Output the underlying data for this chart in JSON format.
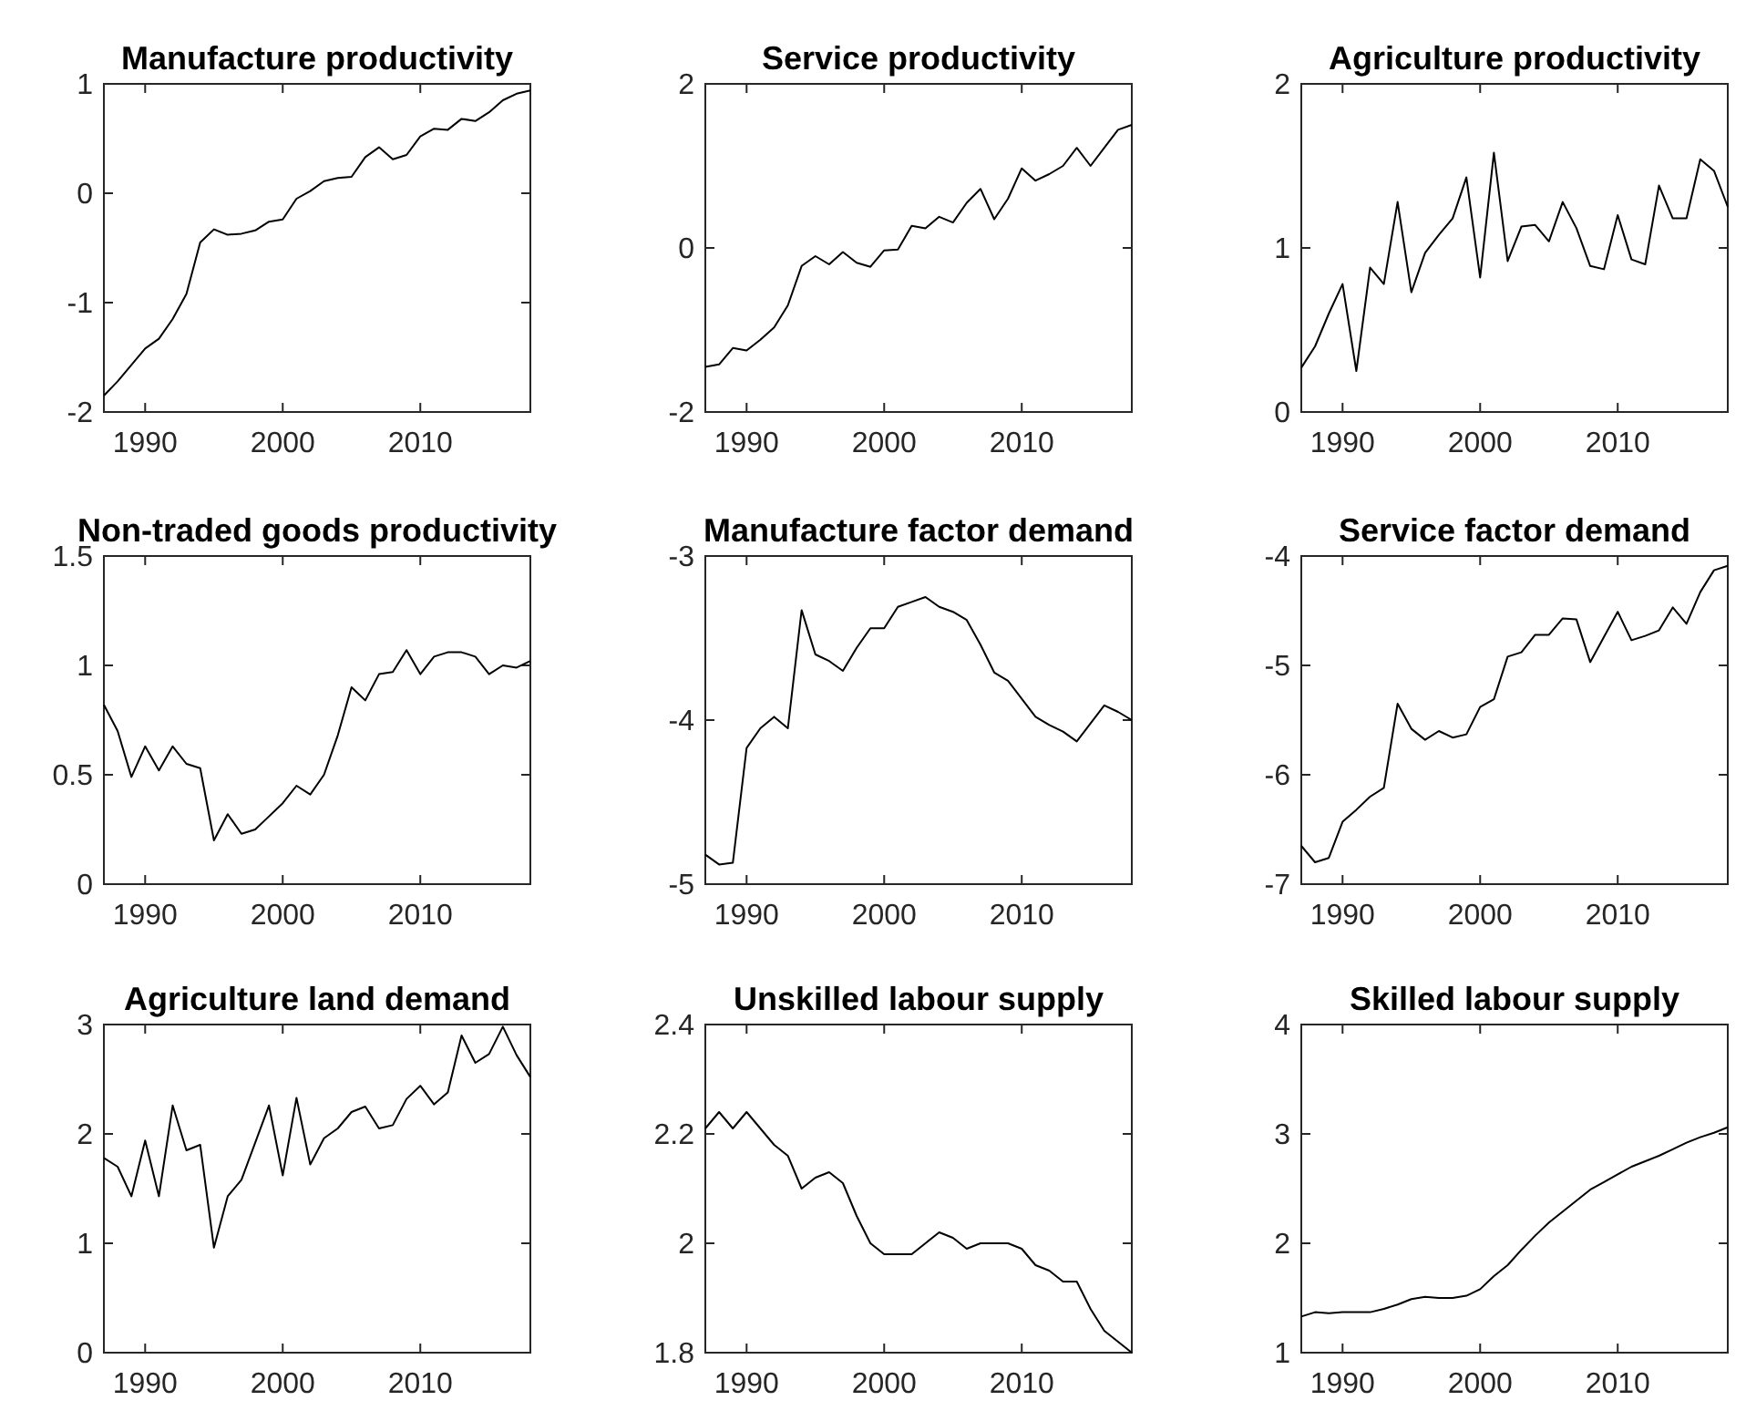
{
  "chart_data": [
    {
      "type": "line",
      "title": "Manufacture productivity",
      "x": [
        1987,
        1988,
        1989,
        1990,
        1991,
        1992,
        1993,
        1994,
        1995,
        1996,
        1997,
        1998,
        1999,
        2000,
        2001,
        2002,
        2003,
        2004,
        2005,
        2006,
        2007,
        2008,
        2009,
        2010,
        2011,
        2012,
        2013,
        2014,
        2015,
        2016,
        2017,
        2018
      ],
      "values": [
        -1.85,
        -1.72,
        -1.57,
        -1.42,
        -1.33,
        -1.15,
        -0.92,
        -0.45,
        -0.33,
        -0.38,
        -0.37,
        -0.34,
        -0.26,
        -0.24,
        -0.05,
        0.02,
        0.11,
        0.14,
        0.15,
        0.33,
        0.42,
        0.31,
        0.35,
        0.52,
        0.59,
        0.58,
        0.68,
        0.66,
        0.74,
        0.85,
        0.91,
        0.94
      ],
      "color": "#000000",
      "xlim": [
        1987,
        2018
      ],
      "ylim": [
        -2,
        1
      ],
      "xticks": [
        1990,
        2000,
        2010
      ],
      "yticks": [
        -2,
        -1,
        0,
        1
      ]
    },
    {
      "type": "line",
      "title": "Service productivity",
      "x": [
        1987,
        1988,
        1989,
        1990,
        1991,
        1992,
        1993,
        1994,
        1995,
        1996,
        1997,
        1998,
        1999,
        2000,
        2001,
        2002,
        2003,
        2004,
        2005,
        2006,
        2007,
        2008,
        2009,
        2010,
        2011,
        2012,
        2013,
        2014,
        2015,
        2016,
        2017,
        2018
      ],
      "values": [
        -1.45,
        -1.42,
        -1.22,
        -1.25,
        -1.12,
        -0.97,
        -0.7,
        -0.22,
        -0.1,
        -0.2,
        -0.05,
        -0.18,
        -0.23,
        -0.03,
        -0.02,
        0.27,
        0.24,
        0.38,
        0.31,
        0.55,
        0.72,
        0.35,
        0.6,
        0.97,
        0.82,
        0.9,
        1.0,
        1.22,
        1.0,
        1.22,
        1.44,
        1.5
      ],
      "color": "#000000",
      "xlim": [
        1987,
        2018
      ],
      "ylim": [
        -2,
        2
      ],
      "xticks": [
        1990,
        2000,
        2010
      ],
      "yticks": [
        -2,
        0,
        2
      ]
    },
    {
      "type": "line",
      "title": "Agriculture productivity",
      "x": [
        1987,
        1988,
        1989,
        1990,
        1991,
        1992,
        1993,
        1994,
        1995,
        1996,
        1997,
        1998,
        1999,
        2000,
        2001,
        2002,
        2003,
        2004,
        2005,
        2006,
        2007,
        2008,
        2009,
        2010,
        2011,
        2012,
        2013,
        2014,
        2015,
        2016,
        2017,
        2018
      ],
      "values": [
        0.27,
        0.4,
        0.6,
        0.78,
        0.25,
        0.88,
        0.78,
        1.28,
        0.73,
        0.97,
        1.08,
        1.18,
        1.43,
        0.82,
        1.58,
        0.92,
        1.13,
        1.14,
        1.04,
        1.28,
        1.12,
        0.89,
        0.87,
        1.2,
        0.93,
        0.9,
        1.38,
        1.18,
        1.18,
        1.54,
        1.47,
        1.25
      ],
      "color": "#000000",
      "xlim": [
        1987,
        2018
      ],
      "ylim": [
        0,
        2
      ],
      "xticks": [
        1990,
        2000,
        2010
      ],
      "yticks": [
        0,
        1,
        2
      ]
    },
    {
      "type": "line",
      "title": "Non-traded goods productivity",
      "x": [
        1987,
        1988,
        1989,
        1990,
        1991,
        1992,
        1993,
        1994,
        1995,
        1996,
        1997,
        1998,
        1999,
        2000,
        2001,
        2002,
        2003,
        2004,
        2005,
        2006,
        2007,
        2008,
        2009,
        2010,
        2011,
        2012,
        2013,
        2014,
        2015,
        2016,
        2017,
        2018
      ],
      "values": [
        0.82,
        0.7,
        0.49,
        0.63,
        0.52,
        0.63,
        0.55,
        0.53,
        0.2,
        0.32,
        0.23,
        0.25,
        0.31,
        0.37,
        0.45,
        0.41,
        0.5,
        0.68,
        0.9,
        0.84,
        0.96,
        0.97,
        1.07,
        0.96,
        1.04,
        1.06,
        1.06,
        1.04,
        0.96,
        1.0,
        0.99,
        1.02
      ],
      "color": "#000000",
      "xlim": [
        1987,
        2018
      ],
      "ylim": [
        0,
        1.5
      ],
      "xticks": [
        1990,
        2000,
        2010
      ],
      "yticks": [
        0,
        0.5,
        1,
        1.5
      ]
    },
    {
      "type": "line",
      "title": "Manufacture factor demand",
      "x": [
        1987,
        1988,
        1989,
        1990,
        1991,
        1992,
        1993,
        1994,
        1995,
        1996,
        1997,
        1998,
        1999,
        2000,
        2001,
        2002,
        2003,
        2004,
        2005,
        2006,
        2007,
        2008,
        2009,
        2010,
        2011,
        2012,
        2013,
        2014,
        2015,
        2016,
        2017,
        2018
      ],
      "values": [
        -4.82,
        -4.88,
        -4.87,
        -4.17,
        -4.05,
        -3.98,
        -4.05,
        -3.33,
        -3.6,
        -3.64,
        -3.7,
        -3.56,
        -3.44,
        -3.44,
        -3.31,
        -3.28,
        -3.25,
        -3.31,
        -3.34,
        -3.39,
        -3.54,
        -3.71,
        -3.76,
        -3.87,
        -3.98,
        -4.03,
        -4.07,
        -4.13,
        -4.02,
        -3.91,
        -3.95,
        -4.0
      ],
      "color": "#000000",
      "xlim": [
        1987,
        2018
      ],
      "ylim": [
        -5,
        -3
      ],
      "xticks": [
        1990,
        2000,
        2010
      ],
      "yticks": [
        -5,
        -4,
        -3
      ]
    },
    {
      "type": "line",
      "title": "Service factor demand",
      "x": [
        1987,
        1988,
        1989,
        1990,
        1991,
        1992,
        1993,
        1994,
        1995,
        1996,
        1997,
        1998,
        1999,
        2000,
        2001,
        2002,
        2003,
        2004,
        2005,
        2006,
        2007,
        2008,
        2009,
        2010,
        2011,
        2012,
        2013,
        2014,
        2015,
        2016,
        2017,
        2018
      ],
      "values": [
        -6.65,
        -6.8,
        -6.76,
        -6.43,
        -6.32,
        -6.2,
        -6.12,
        -5.35,
        -5.58,
        -5.68,
        -5.6,
        -5.66,
        -5.63,
        -5.38,
        -5.31,
        -4.92,
        -4.88,
        -4.72,
        -4.72,
        -4.57,
        -4.58,
        -4.97,
        -4.74,
        -4.51,
        -4.77,
        -4.73,
        -4.68,
        -4.47,
        -4.62,
        -4.33,
        -4.13,
        -4.09
      ],
      "color": "#000000",
      "xlim": [
        1987,
        2018
      ],
      "ylim": [
        -7,
        -4
      ],
      "xticks": [
        1990,
        2000,
        2010
      ],
      "yticks": [
        -7,
        -6,
        -5,
        -4
      ]
    },
    {
      "type": "line",
      "title": "Agriculture land demand",
      "x": [
        1987,
        1988,
        1989,
        1990,
        1991,
        1992,
        1993,
        1994,
        1995,
        1996,
        1997,
        1998,
        1999,
        2000,
        2001,
        2002,
        2003,
        2004,
        2005,
        2006,
        2007,
        2008,
        2009,
        2010,
        2011,
        2012,
        2013,
        2014,
        2015,
        2016,
        2017,
        2018
      ],
      "values": [
        1.78,
        1.7,
        1.43,
        1.94,
        1.43,
        2.26,
        1.85,
        1.9,
        0.96,
        1.43,
        1.58,
        1.92,
        2.26,
        1.62,
        2.33,
        1.72,
        1.96,
        2.05,
        2.2,
        2.25,
        2.05,
        2.08,
        2.32,
        2.44,
        2.27,
        2.38,
        2.9,
        2.65,
        2.73,
        2.98,
        2.72,
        2.52
      ],
      "color": "#000000",
      "xlim": [
        1987,
        2018
      ],
      "ylim": [
        0,
        3
      ],
      "xticks": [
        1990,
        2000,
        2010
      ],
      "yticks": [
        0,
        1,
        2,
        3
      ]
    },
    {
      "type": "line",
      "title": "Unskilled labour supply",
      "x": [
        1987,
        1988,
        1989,
        1990,
        1991,
        1992,
        1993,
        1994,
        1995,
        1996,
        1997,
        1998,
        1999,
        2000,
        2001,
        2002,
        2003,
        2004,
        2005,
        2006,
        2007,
        2008,
        2009,
        2010,
        2011,
        2012,
        2013,
        2014,
        2015,
        2016,
        2017,
        2018
      ],
      "values": [
        2.21,
        2.24,
        2.21,
        2.24,
        2.21,
        2.18,
        2.16,
        2.1,
        2.12,
        2.13,
        2.11,
        2.05,
        2.0,
        1.98,
        1.98,
        1.98,
        2.0,
        2.02,
        2.01,
        1.99,
        2.0,
        2.0,
        2.0,
        1.99,
        1.96,
        1.95,
        1.93,
        1.93,
        1.88,
        1.84,
        1.82,
        1.8
      ],
      "color": "#000000",
      "xlim": [
        1987,
        2018
      ],
      "ylim": [
        1.8,
        2.4
      ],
      "xticks": [
        1990,
        2000,
        2010
      ],
      "yticks": [
        1.8,
        2,
        2.2,
        2.4
      ]
    },
    {
      "type": "line",
      "title": "Skilled labour supply",
      "x": [
        1987,
        1988,
        1989,
        1990,
        1991,
        1992,
        1993,
        1994,
        1995,
        1996,
        1997,
        1998,
        1999,
        2000,
        2001,
        2002,
        2003,
        2004,
        2005,
        2006,
        2007,
        2008,
        2009,
        2010,
        2011,
        2012,
        2013,
        2014,
        2015,
        2016,
        2017,
        2018
      ],
      "values": [
        1.33,
        1.37,
        1.36,
        1.37,
        1.37,
        1.37,
        1.4,
        1.44,
        1.49,
        1.51,
        1.5,
        1.5,
        1.52,
        1.58,
        1.7,
        1.8,
        1.94,
        2.07,
        2.19,
        2.29,
        2.39,
        2.49,
        2.56,
        2.63,
        2.7,
        2.75,
        2.8,
        2.86,
        2.92,
        2.97,
        3.01,
        3.06
      ],
      "color": "#000000",
      "xlim": [
        1987,
        2018
      ],
      "ylim": [
        1,
        4
      ],
      "xticks": [
        1990,
        2000,
        2010
      ],
      "yticks": [
        1,
        2,
        3,
        4
      ]
    }
  ]
}
